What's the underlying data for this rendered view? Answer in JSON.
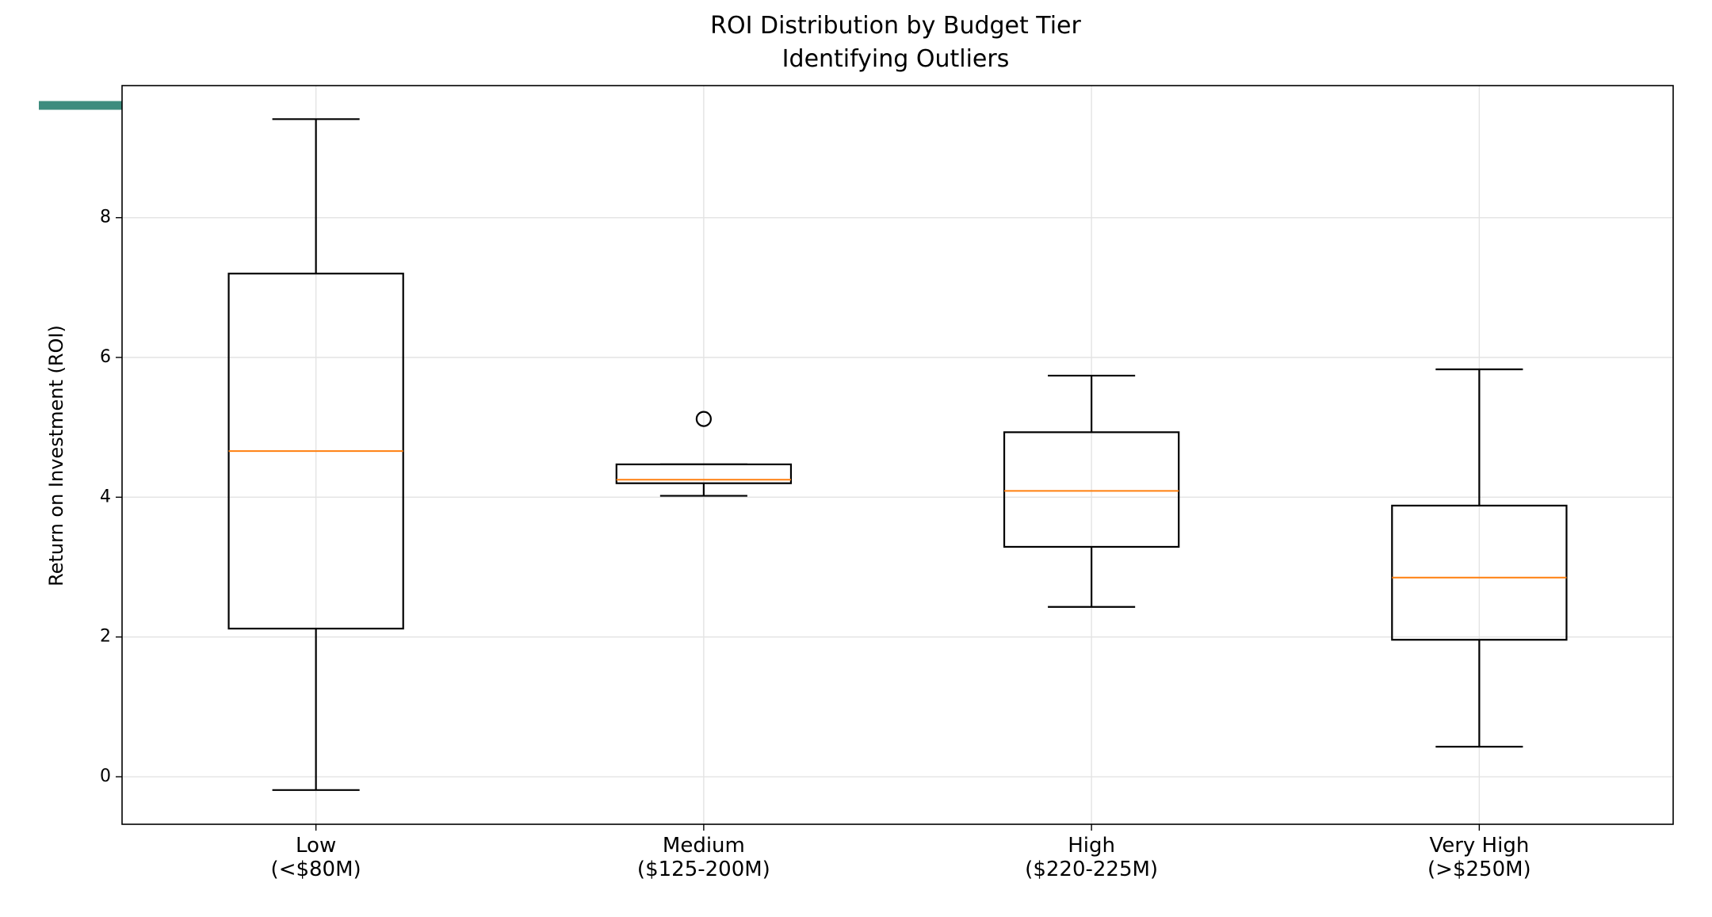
{
  "chart_data": {
    "type": "box",
    "title": "ROI Distribution by Budget Tier\nIdentifying Outliers",
    "y_label": "Return on Investment (ROI)",
    "categories": [
      "Low\n(<$80M)",
      "Medium\n($125-200M)",
      "High\n($220-225M)",
      "Very High\n(>$250M)"
    ],
    "boxes": [
      {
        "whisker_low": -0.19,
        "q1": 2.12,
        "median": 4.66,
        "q3": 7.2,
        "whisker_high": 9.41,
        "outliers": []
      },
      {
        "whisker_low": 4.02,
        "q1": 4.2,
        "median": 4.25,
        "q3": 4.47,
        "whisker_high": 4.47,
        "outliers": [
          5.12
        ]
      },
      {
        "whisker_low": 2.43,
        "q1": 3.29,
        "median": 4.09,
        "q3": 4.93,
        "whisker_high": 5.74,
        "outliers": []
      },
      {
        "whisker_low": 0.43,
        "q1": 1.96,
        "median": 2.85,
        "q3": 3.88,
        "whisker_high": 5.83,
        "outliers": []
      }
    ],
    "box_color": "#000000",
    "median_color": "#ff7f0e",
    "ylim": [
      -0.68,
      9.89
    ],
    "yticks": [
      0,
      2,
      4,
      6,
      8
    ],
    "grid": true
  }
}
